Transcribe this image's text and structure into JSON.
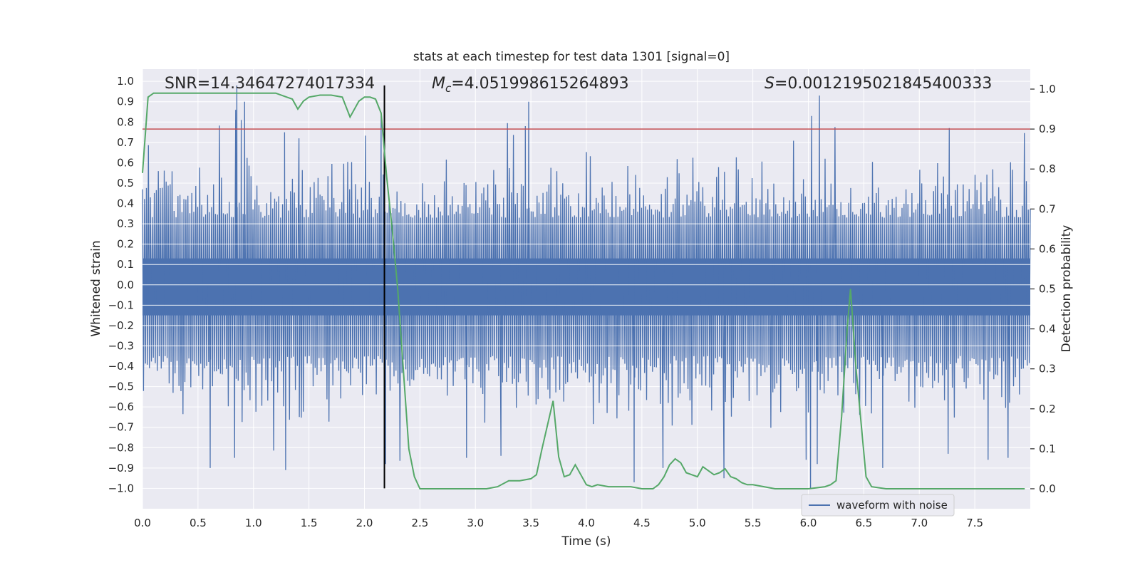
{
  "chart_data": {
    "type": "line",
    "title": "stats at each timestep for test data 1301 [signal=0]",
    "xlabel": "Time (s)",
    "ylabel": "Whitened strain",
    "ylabel_right": "Detection probability",
    "xlim": [
      0.0,
      8.0
    ],
    "ylim": [
      -1.1,
      1.06
    ],
    "ylim_right": [
      -0.05,
      1.05
    ],
    "x_ticks": [
      "0.0",
      "0.5",
      "1.0",
      "1.5",
      "2.0",
      "2.5",
      "3.0",
      "3.5",
      "4.0",
      "4.5",
      "5.0",
      "5.5",
      "6.0",
      "6.5",
      "7.0",
      "7.5"
    ],
    "y_ticks": [
      "1.0",
      "0.9",
      "0.8",
      "0.7",
      "0.6",
      "0.5",
      "0.4",
      "0.3",
      "0.2",
      "0.1",
      "0.0",
      "-0.1",
      "-0.2",
      "-0.3",
      "-0.4",
      "-0.5",
      "-0.6",
      "-0.7",
      "-0.8",
      "-0.9",
      "-1.0"
    ],
    "y_ticks_right": [
      "1.0",
      "0.9",
      "0.8",
      "0.7",
      "0.6",
      "0.5",
      "0.4",
      "0.3",
      "0.2",
      "0.1",
      "0.0"
    ],
    "annotations": {
      "snr": "SNR=14.34647274017334",
      "mc_symbol": "M",
      "mc_sub": "c",
      "mc_value": "=4.051998615264893",
      "s_symbol": "S",
      "s_value": "=0.0012195021845400333"
    },
    "legend": {
      "label": "waveform with noise",
      "placement": "lower-right"
    },
    "threshold_line": {
      "value": 0.9,
      "axis": "right",
      "color": "#c44e52"
    },
    "marker_line": {
      "x": 2.18,
      "y_from": -1.0,
      "y_to": 0.98,
      "color": "#000000"
    },
    "colors": {
      "strain": "#4c72b0",
      "probability": "#55a868",
      "background": "#eaeaf2",
      "grid": "#ffffff"
    },
    "series": [
      {
        "name": "waveform with noise",
        "axis": "left",
        "kind": "noise",
        "sample_count": 900,
        "envelope_typical": [
          -0.4,
          0.38
        ],
        "spikes_up": [
          {
            "x": 0.84,
            "y": 0.86
          },
          {
            "x": 0.85,
            "y": 0.98
          },
          {
            "x": 0.89,
            "y": 0.81
          },
          {
            "x": 0.92,
            "y": 0.9
          },
          {
            "x": 2.15,
            "y": 0.83
          },
          {
            "x": 3.48,
            "y": 0.9
          },
          {
            "x": 3.45,
            "y": 0.78
          },
          {
            "x": 6.03,
            "y": 0.83
          },
          {
            "x": 6.1,
            "y": 0.93
          },
          {
            "x": 7.27,
            "y": 0.77
          },
          {
            "x": 1.41,
            "y": 0.72
          },
          {
            "x": 1.28,
            "y": 0.75
          }
        ],
        "spikes_down": [
          {
            "x": 0.61,
            "y": -0.9
          },
          {
            "x": 0.83,
            "y": -0.85
          },
          {
            "x": 1.29,
            "y": -0.91
          },
          {
            "x": 2.19,
            "y": -0.88
          },
          {
            "x": 2.92,
            "y": -0.85
          },
          {
            "x": 3.23,
            "y": -0.84
          },
          {
            "x": 4.43,
            "y": -0.97
          },
          {
            "x": 4.69,
            "y": -0.9
          },
          {
            "x": 5.24,
            "y": -0.95
          },
          {
            "x": 5.98,
            "y": -0.86
          },
          {
            "x": 6.02,
            "y": -1.0
          },
          {
            "x": 6.08,
            "y": -0.88
          },
          {
            "x": 6.67,
            "y": -0.9
          },
          {
            "x": 7.26,
            "y": -0.83
          },
          {
            "x": 7.62,
            "y": -0.86
          },
          {
            "x": 7.8,
            "y": -0.85
          }
        ]
      },
      {
        "name": "detection probability",
        "axis": "right",
        "x": [
          0.0,
          0.05,
          0.1,
          0.15,
          0.2,
          0.4,
          0.6,
          0.8,
          1.0,
          1.2,
          1.3,
          1.35,
          1.4,
          1.45,
          1.5,
          1.6,
          1.7,
          1.8,
          1.87,
          1.95,
          2.0,
          2.05,
          2.1,
          2.15,
          2.2,
          2.25,
          2.3,
          2.35,
          2.4,
          2.45,
          2.5,
          2.6,
          2.8,
          3.0,
          3.1,
          3.2,
          3.3,
          3.4,
          3.5,
          3.55,
          3.6,
          3.65,
          3.7,
          3.75,
          3.8,
          3.85,
          3.9,
          3.95,
          4.0,
          4.05,
          4.1,
          4.2,
          4.3,
          4.4,
          4.5,
          4.6,
          4.65,
          4.7,
          4.75,
          4.8,
          4.85,
          4.9,
          4.95,
          5.0,
          5.05,
          5.1,
          5.15,
          5.2,
          5.25,
          5.3,
          5.35,
          5.4,
          5.45,
          5.5,
          5.6,
          5.7,
          5.8,
          6.0,
          6.15,
          6.2,
          6.25,
          6.3,
          6.35,
          6.38,
          6.43,
          6.48,
          6.52,
          6.57,
          6.7,
          7.0,
          7.5,
          7.95
        ],
        "values": [
          0.79,
          0.98,
          0.99,
          0.99,
          0.99,
          0.99,
          0.99,
          0.99,
          0.99,
          0.99,
          0.98,
          0.975,
          0.95,
          0.97,
          0.98,
          0.985,
          0.985,
          0.98,
          0.93,
          0.97,
          0.98,
          0.98,
          0.975,
          0.94,
          0.78,
          0.65,
          0.5,
          0.3,
          0.1,
          0.03,
          0.0,
          0.0,
          0.0,
          0.0,
          0.0,
          0.005,
          0.02,
          0.02,
          0.025,
          0.035,
          0.1,
          0.16,
          0.22,
          0.08,
          0.03,
          0.035,
          0.06,
          0.035,
          0.01,
          0.005,
          0.01,
          0.005,
          0.005,
          0.005,
          0.0,
          0.0,
          0.01,
          0.03,
          0.06,
          0.075,
          0.065,
          0.04,
          0.035,
          0.03,
          0.055,
          0.045,
          0.035,
          0.04,
          0.05,
          0.03,
          0.025,
          0.015,
          0.01,
          0.01,
          0.005,
          0.0,
          0.0,
          0.0,
          0.005,
          0.01,
          0.02,
          0.18,
          0.4,
          0.5,
          0.3,
          0.15,
          0.03,
          0.005,
          0.0,
          0.0,
          0.0,
          0.0
        ]
      }
    ]
  }
}
